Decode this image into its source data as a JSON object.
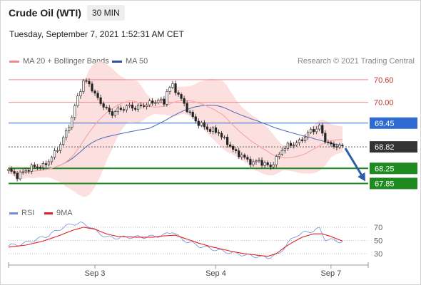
{
  "header": {
    "instrument": "Crude Oil (WTI)",
    "timeframe": "30 MIN",
    "timestamp": "Tuesday, September 7, 2021 1:52:31 AM CET"
  },
  "legend": {
    "ma20_label": "MA 20 + Bollinger Bands",
    "ma50_label": "MA 50",
    "credit": "Research © 2021 Trading Central",
    "rsi_label": "RSI",
    "ma9_label": "9MA"
  },
  "colors": {
    "ma20": "#f4a6a6",
    "bollinger_fill": "#fcd9d9",
    "ma50": "#4d68b3",
    "pivot": "#2f6bd1",
    "support": "#1f8a1f",
    "resistance": "#f28b8b",
    "last": "#333333",
    "arrow": "#2b5ea7",
    "candle": "#222222",
    "rsi": "#6f8fdc",
    "ma9": "#e02020"
  },
  "chart_data": [
    {
      "type": "candlestick",
      "title": "Crude Oil (WTI)",
      "timeframe": "30 MIN",
      "x_ticks": [
        "Sep 3",
        "Sep 4",
        "Sep 7"
      ],
      "ylim": [
        67.5,
        70.9
      ],
      "levels": [
        {
          "name": "resistance-2",
          "value": 70.6,
          "label": "70.60",
          "style": "resistance"
        },
        {
          "name": "resistance-1",
          "value": 70.0,
          "label": "70.00",
          "style": "resistance"
        },
        {
          "name": "pivot",
          "value": 69.45,
          "label": "69.45",
          "style": "pivot"
        },
        {
          "name": "last-price",
          "value": 68.82,
          "label": "68.82",
          "style": "last"
        },
        {
          "name": "support-1",
          "value": 68.25,
          "label": "68.25",
          "style": "support"
        },
        {
          "name": "support-2",
          "value": 67.85,
          "label": "67.85",
          "style": "support"
        }
      ],
      "price_anchors": [
        [
          0,
          68.2
        ],
        [
          3,
          68.05
        ],
        [
          6,
          68.2
        ],
        [
          9,
          68.3
        ],
        [
          12,
          68.3
        ],
        [
          14,
          68.45
        ],
        [
          16,
          68.65
        ],
        [
          18,
          68.9
        ],
        [
          20,
          69.2
        ],
        [
          22,
          69.6
        ],
        [
          24,
          70.15
        ],
        [
          26,
          70.55
        ],
        [
          28,
          70.5
        ],
        [
          30,
          70.2
        ],
        [
          32,
          70.0
        ],
        [
          34,
          69.8
        ],
        [
          36,
          69.7
        ],
        [
          38,
          69.8
        ],
        [
          40,
          69.85
        ],
        [
          42,
          69.9
        ],
        [
          44,
          69.85
        ],
        [
          46,
          69.9
        ],
        [
          48,
          69.95
        ],
        [
          50,
          70.0
        ],
        [
          52,
          70.05
        ],
        [
          54,
          70.0
        ],
        [
          55,
          70.3
        ],
        [
          57,
          70.45
        ],
        [
          59,
          70.2
        ],
        [
          61,
          69.95
        ],
        [
          63,
          69.7
        ],
        [
          65,
          69.5
        ],
        [
          67,
          69.4
        ],
        [
          69,
          69.3
        ],
        [
          71,
          69.25
        ],
        [
          73,
          69.2
        ],
        [
          75,
          69.0
        ],
        [
          77,
          68.85
        ],
        [
          79,
          68.65
        ],
        [
          81,
          68.6
        ],
        [
          83,
          68.45
        ],
        [
          85,
          68.4
        ],
        [
          87,
          68.45
        ],
        [
          89,
          68.35
        ],
        [
          91,
          68.3
        ],
        [
          93,
          68.5
        ],
        [
          95,
          68.75
        ],
        [
          97,
          68.85
        ],
        [
          99,
          68.9
        ],
        [
          101,
          68.95
        ],
        [
          103,
          69.1
        ],
        [
          105,
          69.25
        ],
        [
          107,
          69.3
        ],
        [
          108,
          69.35
        ],
        [
          110,
          69.0
        ],
        [
          112,
          68.85
        ],
        [
          114,
          68.85
        ],
        [
          116,
          68.82
        ]
      ],
      "series": [
        {
          "name": "MA 20 + Bollinger Bands",
          "kind": "line",
          "style": "ma20"
        },
        {
          "name": "MA 50",
          "kind": "line",
          "style": "ma50"
        }
      ],
      "forecast_arrow": {
        "from": 68.82,
        "to": 67.85,
        "color": "#2b5ea7"
      }
    },
    {
      "type": "line",
      "title": "RSI",
      "yticks": [
        70,
        50,
        30
      ],
      "ylim": [
        15,
        85
      ],
      "series": [
        {
          "name": "RSI",
          "color": "#6f8fdc",
          "anchors": [
            [
              0,
              42
            ],
            [
              5,
              45
            ],
            [
              10,
              52
            ],
            [
              14,
              58
            ],
            [
              18,
              68
            ],
            [
              22,
              75
            ],
            [
              25,
              76
            ],
            [
              28,
              72
            ],
            [
              31,
              62
            ],
            [
              34,
              55
            ],
            [
              38,
              54
            ],
            [
              42,
              55
            ],
            [
              46,
              55
            ],
            [
              50,
              56
            ],
            [
              54,
              58
            ],
            [
              57,
              64
            ],
            [
              60,
              52
            ],
            [
              63,
              47
            ],
            [
              66,
              42
            ],
            [
              70,
              38
            ],
            [
              74,
              34
            ],
            [
              78,
              31
            ],
            [
              82,
              28
            ],
            [
              86,
              26
            ],
            [
              90,
              24
            ],
            [
              94,
              30
            ],
            [
              97,
              46
            ],
            [
              100,
              58
            ],
            [
              103,
              62
            ],
            [
              106,
              65
            ],
            [
              108,
              68
            ],
            [
              110,
              52
            ],
            [
              113,
              50
            ],
            [
              116,
              48
            ]
          ]
        },
        {
          "name": "9MA",
          "color": "#e02020",
          "anchors": [
            [
              0,
              40
            ],
            [
              6,
              43
            ],
            [
              12,
              49
            ],
            [
              18,
              58
            ],
            [
              22,
              65
            ],
            [
              26,
              70
            ],
            [
              30,
              67
            ],
            [
              34,
              60
            ],
            [
              38,
              56
            ],
            [
              44,
              55
            ],
            [
              50,
              55
            ],
            [
              54,
              57
            ],
            [
              58,
              58
            ],
            [
              62,
              52
            ],
            [
              66,
              46
            ],
            [
              70,
              41
            ],
            [
              74,
              37
            ],
            [
              78,
              33
            ],
            [
              82,
              30
            ],
            [
              86,
              28
            ],
            [
              90,
              26
            ],
            [
              93,
              30
            ],
            [
              96,
              40
            ],
            [
              99,
              48
            ],
            [
              102,
              55
            ],
            [
              106,
              60
            ],
            [
              109,
              60
            ],
            [
              112,
              56
            ],
            [
              116,
              49
            ]
          ]
        }
      ]
    }
  ]
}
